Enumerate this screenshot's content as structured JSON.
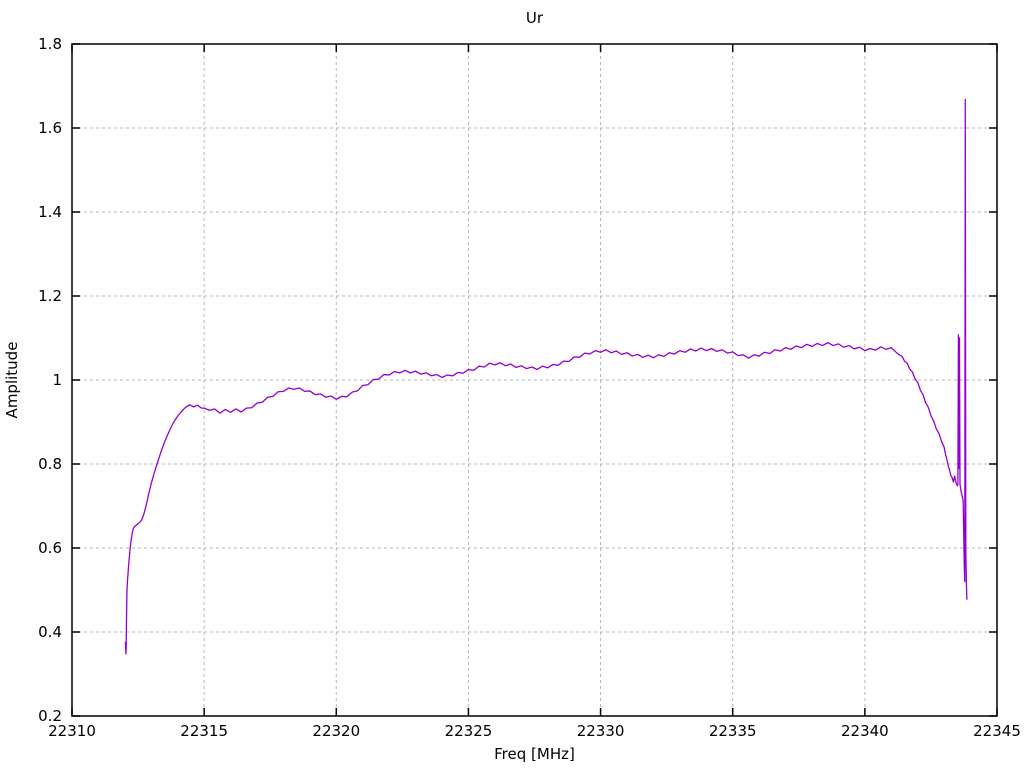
{
  "chart_data": {
    "type": "line",
    "title": "Ur",
    "xlabel": "Freq [MHz]",
    "ylabel": "Amplitude",
    "xlim": [
      22310,
      22345
    ],
    "ylim": [
      0.2,
      1.8
    ],
    "x_ticks": [
      22310,
      22315,
      22320,
      22325,
      22330,
      22335,
      22340,
      22345
    ],
    "y_ticks": [
      0.2,
      0.4,
      0.6,
      0.8,
      1,
      1.2,
      1.4,
      1.6,
      1.8
    ],
    "grid": true,
    "legend": "none",
    "line_color": "#9400d3",
    "grid_color": "#b5b5b5",
    "border_color": "#000000",
    "series": [
      {
        "name": "Ur",
        "points": [
          [
            22312.02,
            0.375
          ],
          [
            22312.04,
            0.348
          ],
          [
            22312.05,
            0.362
          ],
          [
            22312.06,
            0.42
          ],
          [
            22312.08,
            0.5
          ],
          [
            22312.1,
            0.522
          ],
          [
            22312.13,
            0.548
          ],
          [
            22312.16,
            0.572
          ],
          [
            22312.2,
            0.598
          ],
          [
            22312.24,
            0.62
          ],
          [
            22312.28,
            0.636
          ],
          [
            22312.33,
            0.648
          ],
          [
            22312.4,
            0.653
          ],
          [
            22312.48,
            0.657
          ],
          [
            22312.56,
            0.661
          ],
          [
            22312.64,
            0.667
          ],
          [
            22312.72,
            0.681
          ],
          [
            22312.8,
            0.7
          ],
          [
            22312.9,
            0.728
          ],
          [
            22313.0,
            0.754
          ],
          [
            22313.1,
            0.776
          ],
          [
            22313.2,
            0.797
          ],
          [
            22313.3,
            0.816
          ],
          [
            22313.4,
            0.835
          ],
          [
            22313.5,
            0.852
          ],
          [
            22313.6,
            0.867
          ],
          [
            22313.7,
            0.881
          ],
          [
            22313.8,
            0.894
          ],
          [
            22313.9,
            0.905
          ],
          [
            22314.0,
            0.914
          ],
          [
            22314.1,
            0.922
          ],
          [
            22314.2,
            0.929
          ],
          [
            22314.3,
            0.935
          ],
          [
            22314.45,
            0.941
          ],
          [
            22314.6,
            0.936
          ],
          [
            22314.75,
            0.94
          ],
          [
            22314.9,
            0.933
          ],
          [
            22315.0,
            0.933
          ],
          [
            22315.2,
            0.928
          ],
          [
            22315.4,
            0.931
          ],
          [
            22315.6,
            0.921
          ],
          [
            22315.8,
            0.93
          ],
          [
            22316.0,
            0.923
          ],
          [
            22316.2,
            0.931
          ],
          [
            22316.4,
            0.924
          ],
          [
            22316.6,
            0.933
          ],
          [
            22316.8,
            0.934
          ],
          [
            22317.0,
            0.945
          ],
          [
            22317.2,
            0.947
          ],
          [
            22317.4,
            0.959
          ],
          [
            22317.6,
            0.961
          ],
          [
            22317.8,
            0.972
          ],
          [
            22318.0,
            0.973
          ],
          [
            22318.2,
            0.981
          ],
          [
            22318.4,
            0.978
          ],
          [
            22318.6,
            0.981
          ],
          [
            22318.8,
            0.973
          ],
          [
            22319.0,
            0.974
          ],
          [
            22319.2,
            0.965
          ],
          [
            22319.4,
            0.967
          ],
          [
            22319.6,
            0.959
          ],
          [
            22319.8,
            0.962
          ],
          [
            22320.0,
            0.954
          ],
          [
            22320.2,
            0.961
          ],
          [
            22320.4,
            0.96
          ],
          [
            22320.6,
            0.971
          ],
          [
            22320.8,
            0.974
          ],
          [
            22321.0,
            0.987
          ],
          [
            22321.2,
            0.989
          ],
          [
            22321.4,
            1.001
          ],
          [
            22321.6,
            1.002
          ],
          [
            22321.8,
            1.013
          ],
          [
            22322.0,
            1.012
          ],
          [
            22322.2,
            1.02
          ],
          [
            22322.4,
            1.017
          ],
          [
            22322.6,
            1.023
          ],
          [
            22322.8,
            1.017
          ],
          [
            22323.0,
            1.021
          ],
          [
            22323.2,
            1.014
          ],
          [
            22323.4,
            1.017
          ],
          [
            22323.6,
            1.01
          ],
          [
            22323.8,
            1.013
          ],
          [
            22324.0,
            1.006
          ],
          [
            22324.2,
            1.012
          ],
          [
            22324.4,
            1.01
          ],
          [
            22324.6,
            1.018
          ],
          [
            22324.8,
            1.016
          ],
          [
            22325.0,
            1.025
          ],
          [
            22325.2,
            1.023
          ],
          [
            22325.4,
            1.033
          ],
          [
            22325.6,
            1.031
          ],
          [
            22325.8,
            1.04
          ],
          [
            22326.0,
            1.036
          ],
          [
            22326.2,
            1.041
          ],
          [
            22326.4,
            1.034
          ],
          [
            22326.6,
            1.038
          ],
          [
            22326.8,
            1.03
          ],
          [
            22327.0,
            1.034
          ],
          [
            22327.2,
            1.027
          ],
          [
            22327.4,
            1.031
          ],
          [
            22327.6,
            1.025
          ],
          [
            22327.8,
            1.033
          ],
          [
            22328.0,
            1.029
          ],
          [
            22328.2,
            1.037
          ],
          [
            22328.4,
            1.035
          ],
          [
            22328.6,
            1.045
          ],
          [
            22328.8,
            1.044
          ],
          [
            22329.0,
            1.055
          ],
          [
            22329.2,
            1.054
          ],
          [
            22329.4,
            1.064
          ],
          [
            22329.6,
            1.062
          ],
          [
            22329.8,
            1.07
          ],
          [
            22330.0,
            1.066
          ],
          [
            22330.2,
            1.072
          ],
          [
            22330.4,
            1.065
          ],
          [
            22330.6,
            1.069
          ],
          [
            22330.8,
            1.061
          ],
          [
            22331.0,
            1.065
          ],
          [
            22331.2,
            1.057
          ],
          [
            22331.4,
            1.061
          ],
          [
            22331.6,
            1.054
          ],
          [
            22331.8,
            1.059
          ],
          [
            22332.0,
            1.053
          ],
          [
            22332.2,
            1.06
          ],
          [
            22332.4,
            1.056
          ],
          [
            22332.6,
            1.065
          ],
          [
            22332.8,
            1.062
          ],
          [
            22333.0,
            1.07
          ],
          [
            22333.2,
            1.066
          ],
          [
            22333.4,
            1.074
          ],
          [
            22333.6,
            1.069
          ],
          [
            22333.8,
            1.076
          ],
          [
            22334.0,
            1.07
          ],
          [
            22334.2,
            1.075
          ],
          [
            22334.4,
            1.068
          ],
          [
            22334.6,
            1.072
          ],
          [
            22334.8,
            1.064
          ],
          [
            22335.0,
            1.067
          ],
          [
            22335.2,
            1.058
          ],
          [
            22335.4,
            1.06
          ],
          [
            22335.6,
            1.052
          ],
          [
            22335.8,
            1.06
          ],
          [
            22336.0,
            1.057
          ],
          [
            22336.2,
            1.066
          ],
          [
            22336.4,
            1.063
          ],
          [
            22336.6,
            1.072
          ],
          [
            22336.8,
            1.069
          ],
          [
            22337.0,
            1.077
          ],
          [
            22337.2,
            1.073
          ],
          [
            22337.4,
            1.081
          ],
          [
            22337.6,
            1.077
          ],
          [
            22337.8,
            1.085
          ],
          [
            22338.0,
            1.08
          ],
          [
            22338.2,
            1.087
          ],
          [
            22338.4,
            1.082
          ],
          [
            22338.6,
            1.089
          ],
          [
            22338.8,
            1.082
          ],
          [
            22339.0,
            1.086
          ],
          [
            22339.2,
            1.078
          ],
          [
            22339.4,
            1.082
          ],
          [
            22339.6,
            1.074
          ],
          [
            22339.8,
            1.078
          ],
          [
            22340.0,
            1.07
          ],
          [
            22340.2,
            1.075
          ],
          [
            22340.4,
            1.071
          ],
          [
            22340.6,
            1.079
          ],
          [
            22340.8,
            1.073
          ],
          [
            22341.0,
            1.077
          ],
          [
            22341.2,
            1.065
          ],
          [
            22341.3,
            1.06
          ],
          [
            22341.4,
            1.057
          ],
          [
            22341.5,
            1.045
          ],
          [
            22341.6,
            1.04
          ],
          [
            22341.7,
            1.026
          ],
          [
            22341.8,
            1.019
          ],
          [
            22341.9,
            1.003
          ],
          [
            22342.0,
            0.994
          ],
          [
            22342.1,
            0.976
          ],
          [
            22342.2,
            0.965
          ],
          [
            22342.3,
            0.946
          ],
          [
            22342.4,
            0.935
          ],
          [
            22342.5,
            0.915
          ],
          [
            22342.6,
            0.903
          ],
          [
            22342.7,
            0.884
          ],
          [
            22342.8,
            0.873
          ],
          [
            22342.9,
            0.854
          ],
          [
            22343.0,
            0.84
          ],
          [
            22343.05,
            0.823
          ],
          [
            22343.1,
            0.812
          ],
          [
            22343.15,
            0.796
          ],
          [
            22343.2,
            0.787
          ],
          [
            22343.25,
            0.773
          ],
          [
            22343.3,
            0.768
          ],
          [
            22343.35,
            0.757
          ],
          [
            22343.4,
            0.771
          ],
          [
            22343.45,
            0.755
          ],
          [
            22343.5,
            0.748
          ],
          [
            22343.52,
            0.752
          ],
          [
            22343.54,
            1.108
          ],
          [
            22343.56,
            0.79
          ],
          [
            22343.58,
            1.1
          ],
          [
            22343.6,
            0.752
          ],
          [
            22343.64,
            0.735
          ],
          [
            22343.68,
            0.725
          ],
          [
            22343.72,
            0.712
          ],
          [
            22343.74,
            0.64
          ],
          [
            22343.76,
            0.56
          ],
          [
            22343.78,
            0.52
          ],
          [
            22343.8,
            1.668
          ],
          [
            22343.82,
            0.6
          ],
          [
            22343.84,
            0.52
          ],
          [
            22343.86,
            0.478
          ]
        ]
      }
    ]
  }
}
